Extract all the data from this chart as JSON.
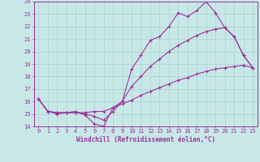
{
  "xlabel": "Windchill (Refroidissement éolien,°C)",
  "bg_color": "#c8e8e8",
  "grid_color": "#b0d4d4",
  "line_color": "#993399",
  "spine_color": "#993399",
  "xlim": [
    -0.5,
    23.5
  ],
  "ylim": [
    14,
    24
  ],
  "xticks": [
    0,
    1,
    2,
    3,
    4,
    5,
    6,
    7,
    8,
    9,
    10,
    11,
    12,
    13,
    14,
    15,
    16,
    17,
    18,
    19,
    20,
    21,
    22,
    23
  ],
  "yticks": [
    14,
    15,
    16,
    17,
    18,
    19,
    20,
    21,
    22,
    23,
    24
  ],
  "line1_x": [
    0,
    1,
    2,
    3,
    4,
    5,
    6,
    7,
    8,
    9,
    10,
    11,
    12,
    13,
    14,
    15,
    16,
    17,
    18,
    19,
    20,
    21,
    22,
    23
  ],
  "line1_y": [
    16.2,
    15.2,
    15.0,
    15.1,
    15.2,
    14.9,
    14.2,
    14.0,
    15.5,
    16.0,
    18.6,
    19.7,
    20.9,
    21.2,
    22.0,
    23.1,
    22.8,
    23.3,
    24.0,
    23.1,
    21.9,
    21.2,
    19.7,
    18.7
  ],
  "line2_x": [
    0,
    1,
    2,
    3,
    4,
    5,
    6,
    7,
    8,
    9,
    10,
    11,
    12,
    13,
    14,
    15,
    16,
    17,
    18,
    19,
    20,
    21,
    22,
    23
  ],
  "line2_y": [
    16.2,
    15.2,
    15.1,
    15.1,
    15.1,
    15.1,
    15.2,
    15.2,
    15.5,
    15.8,
    16.1,
    16.5,
    16.8,
    17.1,
    17.4,
    17.7,
    17.9,
    18.2,
    18.4,
    18.6,
    18.7,
    18.8,
    18.9,
    18.7
  ],
  "line3_x": [
    0,
    1,
    2,
    3,
    4,
    5,
    6,
    7,
    8,
    9,
    10,
    11,
    12,
    13,
    14,
    15,
    16,
    17,
    18,
    19,
    20,
    21,
    22,
    23
  ],
  "line3_y": [
    16.2,
    15.2,
    15.1,
    15.1,
    15.1,
    15.0,
    14.8,
    14.5,
    15.2,
    16.0,
    17.2,
    18.0,
    18.8,
    19.4,
    20.0,
    20.5,
    20.9,
    21.3,
    21.6,
    21.8,
    21.9,
    21.2,
    19.7,
    18.7
  ],
  "tick_fontsize": 5.0,
  "xlabel_fontsize": 5.5
}
